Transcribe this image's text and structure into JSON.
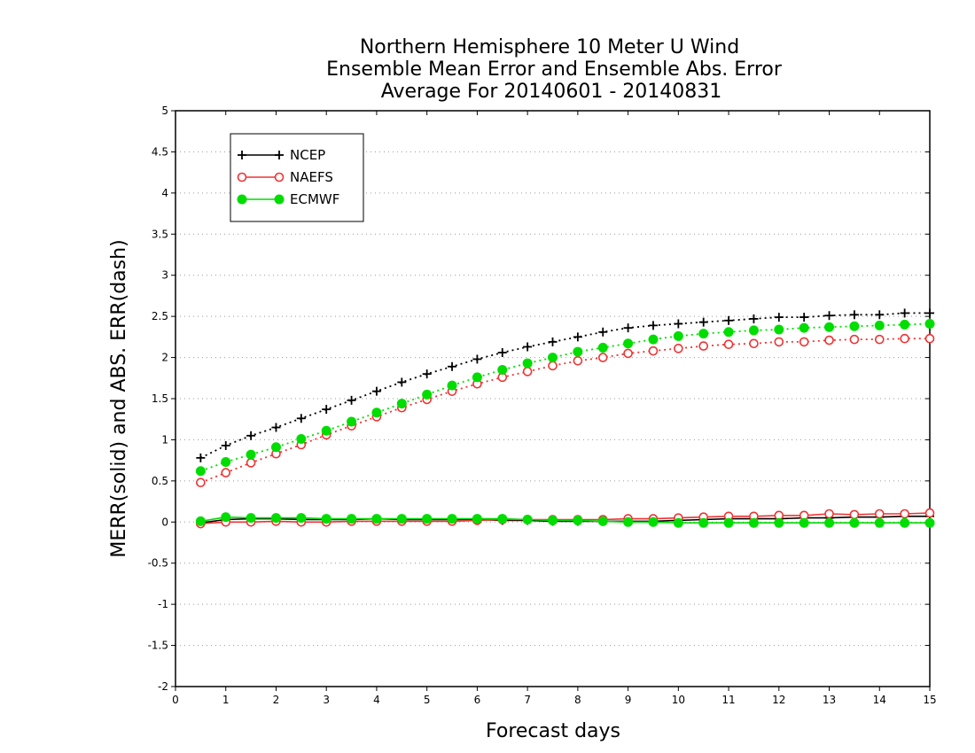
{
  "chart_data": {
    "type": "line",
    "title": [
      "Northern Hemisphere 10 Meter U Wind",
      "Ensemble Mean Error and Ensemble Abs. Error",
      "Average For 20140601 - 20140831"
    ],
    "xlabel": "Forecast days",
    "ylabel": "MERR(solid) and ABS. ERR(dash)",
    "xlim": [
      0,
      15
    ],
    "ylim": [
      -2,
      5
    ],
    "xticks": [
      "0",
      "1",
      "2",
      "3",
      "4",
      "5",
      "6",
      "7",
      "8",
      "9",
      "10",
      "11",
      "12",
      "13",
      "14",
      "15"
    ],
    "yticks": [
      "-2",
      "-1.5",
      "-1",
      "-0.5",
      "0",
      "0.5",
      "1",
      "1.5",
      "2",
      "2.5",
      "3",
      "3.5",
      "4",
      "4.5",
      "5"
    ],
    "grid": "horizontal dotted",
    "legend_position": "top-left",
    "x": [
      0.5,
      1,
      1.5,
      2,
      2.5,
      3,
      3.5,
      4,
      4.5,
      5,
      5.5,
      6,
      6.5,
      7,
      7.5,
      8,
      8.5,
      9,
      9.5,
      10,
      10.5,
      11,
      11.5,
      12,
      12.5,
      13,
      13.5,
      14,
      14.5,
      15
    ],
    "series": [
      {
        "name": "NCEP",
        "color": "#000000",
        "marker": "plus",
        "merr": [
          -0.01,
          0.03,
          0.04,
          0.04,
          0.03,
          0.03,
          0.03,
          0.04,
          0.03,
          0.03,
          0.03,
          0.03,
          0.02,
          0.02,
          0.01,
          0.01,
          0.01,
          0.01,
          0.01,
          0.02,
          0.03,
          0.04,
          0.04,
          0.04,
          0.05,
          0.05,
          0.06,
          0.06,
          0.07,
          0.07
        ],
        "abs_err": [
          0.78,
          0.93,
          1.05,
          1.15,
          1.26,
          1.37,
          1.48,
          1.59,
          1.7,
          1.8,
          1.89,
          1.98,
          2.06,
          2.13,
          2.19,
          2.25,
          2.31,
          2.36,
          2.39,
          2.41,
          2.43,
          2.45,
          2.47,
          2.49,
          2.49,
          2.51,
          2.52,
          2.52,
          2.54,
          2.54
        ]
      },
      {
        "name": "NAEFS",
        "color": "#ee3333",
        "marker": "open-circle",
        "merr": [
          -0.02,
          0.0,
          0.0,
          0.01,
          0.0,
          0.0,
          0.01,
          0.01,
          0.01,
          0.01,
          0.01,
          0.02,
          0.03,
          0.03,
          0.03,
          0.03,
          0.03,
          0.04,
          0.04,
          0.05,
          0.06,
          0.07,
          0.07,
          0.08,
          0.08,
          0.1,
          0.09,
          0.1,
          0.1,
          0.11
        ],
        "abs_err": [
          0.48,
          0.6,
          0.72,
          0.83,
          0.94,
          1.06,
          1.17,
          1.28,
          1.39,
          1.49,
          1.59,
          1.68,
          1.76,
          1.83,
          1.9,
          1.96,
          2.0,
          2.05,
          2.08,
          2.11,
          2.14,
          2.16,
          2.17,
          2.19,
          2.19,
          2.21,
          2.22,
          2.22,
          2.23,
          2.23
        ]
      },
      {
        "name": "ECMWF",
        "color": "#00dd00",
        "marker": "filled-circle",
        "merr": [
          0.01,
          0.06,
          0.05,
          0.05,
          0.05,
          0.04,
          0.04,
          0.04,
          0.04,
          0.04,
          0.04,
          0.04,
          0.04,
          0.03,
          0.02,
          0.02,
          0.01,
          0.0,
          0.0,
          -0.01,
          -0.01,
          -0.01,
          -0.01,
          -0.01,
          -0.01,
          -0.01,
          -0.01,
          -0.01,
          -0.01,
          -0.01
        ],
        "abs_err": [
          0.62,
          0.73,
          0.82,
          0.91,
          1.01,
          1.11,
          1.22,
          1.33,
          1.44,
          1.55,
          1.66,
          1.76,
          1.85,
          1.93,
          2.0,
          2.07,
          2.12,
          2.17,
          2.22,
          2.26,
          2.29,
          2.31,
          2.33,
          2.34,
          2.36,
          2.37,
          2.38,
          2.39,
          2.4,
          2.41
        ]
      }
    ]
  }
}
